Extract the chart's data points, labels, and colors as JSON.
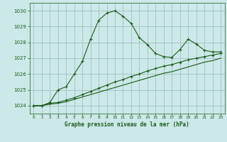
{
  "title": "Graphe pression niveau de la mer (hPa)",
  "bg_color": "#cce8e8",
  "grid_color": "#99bbbb",
  "line_color": "#1a5c1a",
  "ylim": [
    1023.5,
    1030.5
  ],
  "xlim": [
    -0.5,
    23.5
  ],
  "yticks": [
    1024,
    1025,
    1026,
    1027,
    1028,
    1029,
    1030
  ],
  "xticks": [
    0,
    1,
    2,
    3,
    4,
    5,
    6,
    7,
    8,
    9,
    10,
    11,
    12,
    13,
    14,
    15,
    16,
    17,
    18,
    19,
    20,
    21,
    22,
    23
  ],
  "series_top": [
    1024.0,
    1024.0,
    1024.2,
    1025.0,
    1025.2,
    1026.0,
    1026.8,
    1028.2,
    1029.4,
    1029.85,
    1030.0,
    1029.65,
    1029.2,
    1028.3,
    1027.85,
    1027.3,
    1027.1,
    1027.05,
    1027.55,
    1028.2,
    1027.9,
    1027.5,
    1027.4,
    1027.4
  ],
  "series_mid": [
    1024.0,
    1024.0,
    1024.15,
    1024.2,
    1024.35,
    1024.5,
    1024.7,
    1024.9,
    1025.1,
    1025.3,
    1025.5,
    1025.65,
    1025.85,
    1026.0,
    1026.2,
    1026.35,
    1026.5,
    1026.6,
    1026.75,
    1026.9,
    1027.0,
    1027.1,
    1027.2,
    1027.3
  ],
  "series_bot": [
    1024.0,
    1024.0,
    1024.1,
    1024.15,
    1024.25,
    1024.4,
    1024.55,
    1024.7,
    1024.85,
    1025.0,
    1025.15,
    1025.3,
    1025.45,
    1025.6,
    1025.75,
    1025.9,
    1026.05,
    1026.15,
    1026.3,
    1026.45,
    1026.6,
    1026.75,
    1026.85,
    1027.0
  ]
}
